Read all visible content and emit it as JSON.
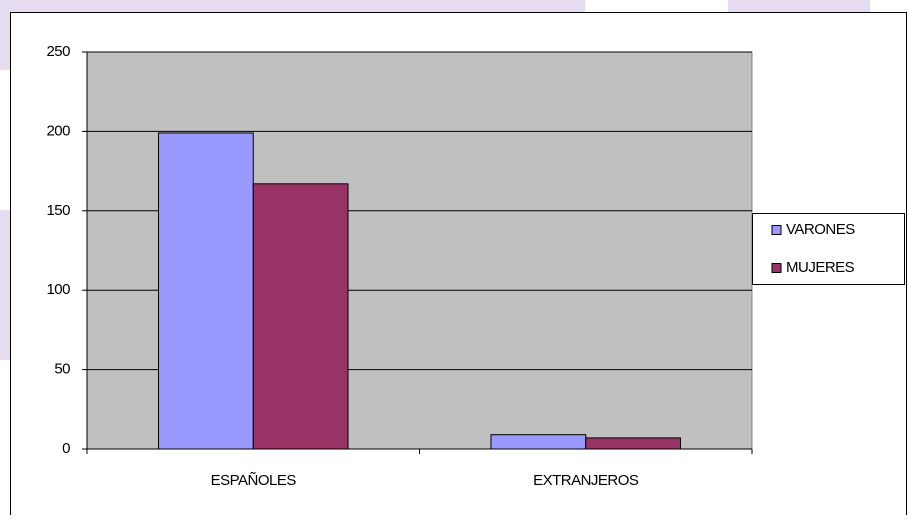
{
  "chart_data": {
    "type": "bar",
    "categories": [
      "ESPAÑOLES",
      "EXTRANJEROS"
    ],
    "series": [
      {
        "name": "VARONES",
        "color": "#9999ff",
        "values": [
          199,
          9
        ]
      },
      {
        "name": "MUJERES",
        "color": "#993366",
        "values": [
          167,
          7
        ]
      }
    ],
    "ylim": [
      0,
      250
    ],
    "yticks": [
      0,
      50,
      100,
      150,
      200,
      250
    ],
    "grid": true,
    "legend": "right"
  }
}
